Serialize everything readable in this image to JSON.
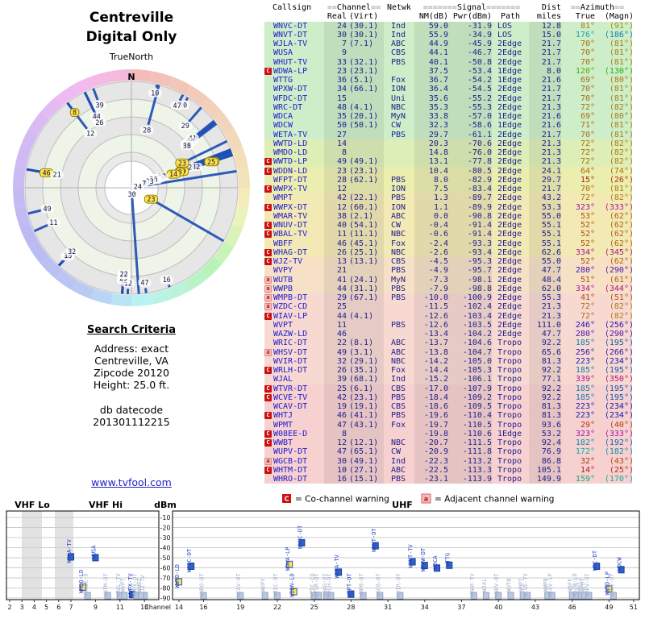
{
  "header": {
    "title_line1": "Centreville",
    "title_line2": "Digital Only"
  },
  "radar": {
    "orientation_label": "TrueNorth",
    "north_label": "N"
  },
  "criteria": {
    "title": "Search Criteria",
    "address_line": "Address: exact",
    "city_line": "Centreville, VA",
    "zip_line": "Zipcode 20120",
    "height_line": "Height: 25.0 ft.",
    "datecode_label": "db datecode",
    "datecode_value": "201301112215"
  },
  "footer": {
    "link_text": "www.tvfool.com"
  },
  "warning_legend": {
    "co_symbol": "C",
    "co_label": "= Co-channel warning",
    "adj_symbol": "a",
    "adj_label": "= Adjacent channel warning"
  },
  "table": {
    "group_headers": {
      "callsign": "Callsign",
      "channel": "==Channel==",
      "netwk": "Netwk",
      "signal": "=======Signal=======",
      "dist": "Dist",
      "azimuth": "==Azimuth=="
    },
    "sub_headers": {
      "real": "Real",
      "virt": "(Virt)",
      "nm": "NM(dB)",
      "pwr": "Pwr(dBm)",
      "path": "Path",
      "miles": "miles",
      "true": "True",
      "magn": "(Magn)"
    }
  },
  "spectrum": {
    "band_vhf_lo": "VHF Lo",
    "band_vhf_hi": "VHF Hi",
    "band_uhf": "UHF",
    "dbm_label": "dBm",
    "channel_label": "Channel",
    "dbm_ticks": [
      -10,
      -20,
      -30,
      -40,
      -50,
      -60,
      -70,
      -80,
      -90
    ],
    "vhf_ticks": [
      2,
      3,
      4,
      5,
      6,
      7,
      9,
      11,
      13
    ],
    "uhf_ticks": [
      14,
      16,
      19,
      22,
      25,
      28,
      31,
      34,
      37,
      40,
      43,
      46,
      49,
      51
    ]
  },
  "chart_data": {
    "type": "table",
    "description": "TV reception report: station table plus azimuth radar plot (line length = noise margin) and channel/power spectrum scatter derived from the same rows",
    "columns": [
      "callsign",
      "real_ch",
      "virt_ch",
      "network",
      "nm_db",
      "pwr_dbm",
      "path",
      "dist_miles",
      "az_true_deg",
      "az_magn_deg",
      "warning"
    ],
    "rows": [
      [
        "WNVC-DT",
        24,
        "(30.1)",
        "Ind",
        59.0,
        -31.9,
        "LOS",
        12.8,
        81,
        91,
        ""
      ],
      [
        "WNVT-DT",
        30,
        "(30.1)",
        "Ind",
        55.9,
        -34.9,
        "LOS",
        15.0,
        176,
        186,
        ""
      ],
      [
        "WJLA-TV",
        7,
        "(7.1)",
        "ABC",
        44.9,
        -45.9,
        "2Edge",
        21.7,
        70,
        81,
        ""
      ],
      [
        "WUSA",
        9,
        "",
        "CBS",
        44.1,
        -46.7,
        "2Edge",
        21.7,
        70,
        81,
        ""
      ],
      [
        "WHUT-TV",
        33,
        "(32.1)",
        "PBS",
        40.1,
        -50.8,
        "2Edge",
        21.7,
        70,
        81,
        ""
      ],
      [
        "WDWA-LP",
        23,
        "(23.1)",
        "",
        37.5,
        -53.4,
        "1Edge",
        8.0,
        120,
        130,
        "C"
      ],
      [
        "WTTG",
        36,
        "(5.1)",
        "Fox",
        36.7,
        -54.2,
        "1Edge",
        21.6,
        69,
        80,
        ""
      ],
      [
        "WPXW-DT",
        34,
        "(66.1)",
        "ION",
        36.4,
        -54.5,
        "2Edge",
        21.7,
        70,
        81,
        ""
      ],
      [
        "WFDC-DT",
        15,
        "",
        "Uni",
        35.6,
        -55.2,
        "2Edge",
        21.7,
        70,
        81,
        ""
      ],
      [
        "WRC-DT",
        48,
        "(4.1)",
        "NBC",
        35.3,
        -55.3,
        "2Edge",
        21.3,
        72,
        82,
        ""
      ],
      [
        "WDCA",
        35,
        "(20.1)",
        "MyN",
        33.8,
        -57.0,
        "1Edge",
        21.6,
        69,
        80,
        ""
      ],
      [
        "WDCW",
        50,
        "(50.1)",
        "CW",
        32.3,
        -58.6,
        "1Edge",
        21.6,
        71,
        81,
        ""
      ],
      [
        "WETA-TV",
        27,
        "",
        "PBS",
        29.7,
        -61.1,
        "2Edge",
        21.7,
        70,
        81,
        ""
      ],
      [
        "WWTD-LD",
        14,
        "",
        "",
        20.3,
        -70.6,
        "2Edge",
        21.3,
        72,
        82,
        ""
      ],
      [
        "WMDO-LD",
        8,
        "",
        "",
        14.8,
        -76.0,
        "2Edge",
        21.3,
        72,
        82,
        ""
      ],
      [
        "WWTD-LP",
        49,
        "(49.1)",
        "",
        13.1,
        -77.8,
        "2Edge",
        21.3,
        72,
        82,
        "C"
      ],
      [
        "WDDN-LD",
        23,
        "(23.1)",
        "",
        10.4,
        -80.5,
        "2Edge",
        24.1,
        64,
        74,
        "C"
      ],
      [
        "WFPT-DT",
        28,
        "(62.1)",
        "PBS",
        8.0,
        -82.9,
        "2Edge",
        29.7,
        15,
        26,
        ""
      ],
      [
        "WWPX-TV",
        12,
        "",
        "ION",
        7.5,
        -83.4,
        "2Edge",
        21.7,
        70,
        81,
        "C"
      ],
      [
        "WMPT",
        42,
        "(22.1)",
        "PBS",
        1.3,
        -89.7,
        "2Edge",
        43.2,
        72,
        82,
        ""
      ],
      [
        "WWPX-DT",
        12,
        "(60.1)",
        "ION",
        1.1,
        -89.9,
        "2Edge",
        53.3,
        323,
        333,
        "C"
      ],
      [
        "WMAR-TV",
        38,
        "(2.1)",
        "ABC",
        0.0,
        -90.8,
        "2Edge",
        55.0,
        53,
        62,
        ""
      ],
      [
        "WNUV-DT",
        40,
        "(54.1)",
        "CW",
        -0.4,
        -91.4,
        "2Edge",
        55.1,
        52,
        62,
        "C"
      ],
      [
        "WBAL-TV",
        11,
        "(11.1)",
        "NBC",
        -0.6,
        -91.4,
        "2Edge",
        55.1,
        52,
        62,
        "C"
      ],
      [
        "WBFF",
        46,
        "(45.1)",
        "Fox",
        -2.4,
        -93.3,
        "2Edge",
        55.1,
        52,
        62,
        ""
      ],
      [
        "WHAG-DT",
        26,
        "(25.1)",
        "NBC",
        -2.6,
        -93.4,
        "2Edge",
        62.6,
        334,
        345,
        "C"
      ],
      [
        "WJZ-TV",
        13,
        "(13.1)",
        "CBS",
        -4.5,
        -95.3,
        "2Edge",
        55.0,
        52,
        62,
        "C"
      ],
      [
        "WVPY",
        21,
        "",
        "PBS",
        -4.9,
        -95.7,
        "2Edge",
        47.7,
        280,
        290,
        ""
      ],
      [
        "WUTB",
        41,
        "(24.1)",
        "MyN",
        -7.3,
        -98.1,
        "2Edge",
        48.4,
        51,
        61,
        "a"
      ],
      [
        "WWPB",
        44,
        "(31.1)",
        "PBS",
        -7.9,
        -98.8,
        "2Edge",
        62.0,
        334,
        344,
        "a"
      ],
      [
        "WMPB-DT",
        29,
        "(67.1)",
        "PBS",
        -10.0,
        -100.9,
        "2Edge",
        55.3,
        41,
        51,
        "a"
      ],
      [
        "WZDC-CD",
        25,
        "",
        "",
        -11.5,
        -102.4,
        "2Edge",
        21.3,
        72,
        82,
        "a"
      ],
      [
        "WIAV-LP",
        44,
        "(4.1)",
        "",
        -12.6,
        -103.4,
        "2Edge",
        21.3,
        72,
        82,
        "C"
      ],
      [
        "WVPT",
        11,
        "",
        "PBS",
        -12.6,
        -103.5,
        "2Edge",
        111.0,
        246,
        256,
        ""
      ],
      [
        "WAZW-LD",
        46,
        "",
        "",
        -13.4,
        -104.2,
        "2Edge",
        47.7,
        280,
        290,
        ""
      ],
      [
        "WRIC-DT",
        22,
        "(8.1)",
        "ABC",
        -13.7,
        -104.6,
        "Tropo",
        92.2,
        185,
        195,
        ""
      ],
      [
        "WHSV-DT",
        49,
        "(3.1)",
        "ABC",
        -13.8,
        -104.7,
        "Tropo",
        65.6,
        256,
        266,
        "a"
      ],
      [
        "WVIR-DT",
        32,
        "(29.1)",
        "NBC",
        -14.2,
        -105.0,
        "Tropo",
        81.3,
        223,
        234,
        ""
      ],
      [
        "WRLH-DT",
        26,
        "(35.1)",
        "Fox",
        -14.4,
        -105.3,
        "Tropo",
        92.2,
        185,
        195,
        "C"
      ],
      [
        "WJAL",
        39,
        "(68.1)",
        "Ind",
        -15.2,
        -106.1,
        "Tropo",
        77.1,
        339,
        350,
        ""
      ],
      [
        "WTVR-DT",
        25,
        "(6.1)",
        "CBS",
        -17.0,
        -107.9,
        "Tropo",
        92.2,
        185,
        195,
        "C"
      ],
      [
        "WCVE-TV",
        42,
        "(23.1)",
        "PBS",
        -18.4,
        -109.2,
        "Tropo",
        92.2,
        185,
        195,
        "C"
      ],
      [
        "WCAV-DT",
        19,
        "(19.1)",
        "CBS",
        -18.6,
        -109.5,
        "Tropo",
        81.3,
        223,
        234,
        ""
      ],
      [
        "WHTJ",
        46,
        "(41.1)",
        "PBS",
        -19.6,
        -110.4,
        "Tropo",
        81.3,
        223,
        234,
        "C"
      ],
      [
        "WPMT",
        47,
        "(43.1)",
        "Fox",
        -19.7,
        -110.5,
        "Tropo",
        93.6,
        29,
        40,
        ""
      ],
      [
        "W08EE-D",
        8,
        "",
        "",
        -19.8,
        -110.6,
        "1Edge",
        53.2,
        323,
        333,
        "C"
      ],
      [
        "WWBT",
        12,
        "(12.1)",
        "NBC",
        -20.7,
        -111.5,
        "Tropo",
        92.4,
        182,
        192,
        "C"
      ],
      [
        "WUPV-DT",
        47,
        "(65.1)",
        "CW",
        -20.9,
        -111.8,
        "Tropo",
        76.9,
        172,
        182,
        ""
      ],
      [
        "WGCB-DT",
        30,
        "(49.1)",
        "Ind",
        -22.3,
        -113.2,
        "Tropo",
        86.8,
        32,
        43,
        "a"
      ],
      [
        "WHTM-DT",
        10,
        "(27.1)",
        "ABC",
        -22.5,
        -113.3,
        "Tropo",
        105.1,
        14,
        25,
        "C"
      ],
      [
        "WHRO-DT",
        16,
        "(15.1)",
        "PBS",
        -23.1,
        -113.9,
        "Tropo",
        149.9,
        159,
        170,
        ""
      ]
    ],
    "radar": {
      "type": "radial-lines",
      "angle_field": "az_true_deg",
      "length_field": "nm_db",
      "label_field": "real_ch",
      "north_up": true
    },
    "spectrum": {
      "type": "scatter",
      "x_field": "real_ch",
      "y_field": "pwr_dbm",
      "ylim": [
        -90,
        -10
      ],
      "x_bands": {
        "vhf": [
          2,
          13
        ],
        "uhf": [
          14,
          51
        ]
      }
    }
  }
}
